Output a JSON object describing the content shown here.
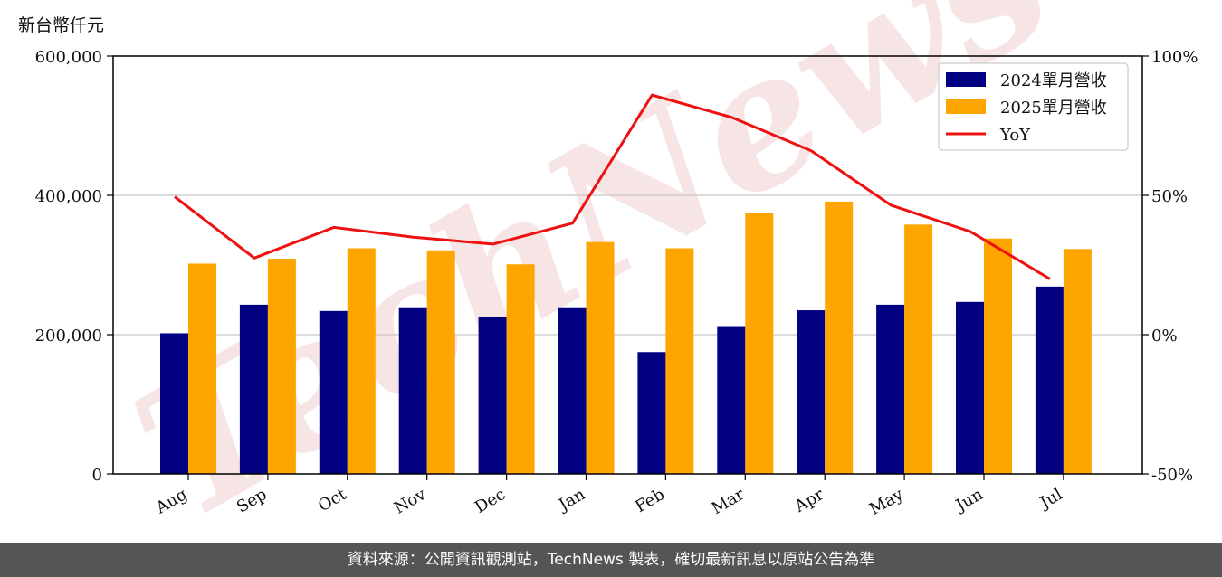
{
  "unit_label": "新台幣仟元",
  "footer": "資料來源：公開資訊觀測站，TechNews 製表，確切最新訊息以原站公告為準",
  "watermark": "TechNews",
  "colors": {
    "series_2024": "#000080",
    "series_2025": "#FFA500",
    "yoy": "#EE1111",
    "watermark": "#E8B4B4",
    "footer_bg": "#555555"
  },
  "chart_data": {
    "type": "bar",
    "categories": [
      "Aug",
      "Sep",
      "Oct",
      "Nov",
      "Dec",
      "Jan",
      "Feb",
      "Mar",
      "Apr",
      "May",
      "Jun",
      "Jul"
    ],
    "series": [
      {
        "name": "2024單月營收",
        "values": [
          202000,
          243000,
          234000,
          238000,
          226000,
          238000,
          175000,
          211000,
          235000,
          243000,
          247000,
          269000
        ]
      },
      {
        "name": "2025單月營收",
        "values": [
          302000,
          309000,
          324000,
          321000,
          301000,
          333000,
          324000,
          375000,
          391000,
          358000,
          338000,
          323000
        ]
      }
    ],
    "line_series": {
      "name": "YoY",
      "values": [
        49.5,
        27.5,
        38.5,
        35,
        32.5,
        40,
        86,
        78,
        66,
        46.5,
        37,
        20
      ]
    },
    "y_left": {
      "min": 0,
      "max": 600000,
      "ticks": [
        0,
        200000,
        400000,
        600000
      ],
      "tick_labels": [
        "0",
        "200,000",
        "400,000",
        "600,000"
      ]
    },
    "y_right": {
      "min": -50,
      "max": 100,
      "ticks": [
        -50,
        0,
        50,
        100
      ],
      "tick_labels": [
        "-50%",
        "0%",
        "50%",
        "100%"
      ]
    },
    "grid": "horizontal",
    "legend_position": "top-right"
  }
}
